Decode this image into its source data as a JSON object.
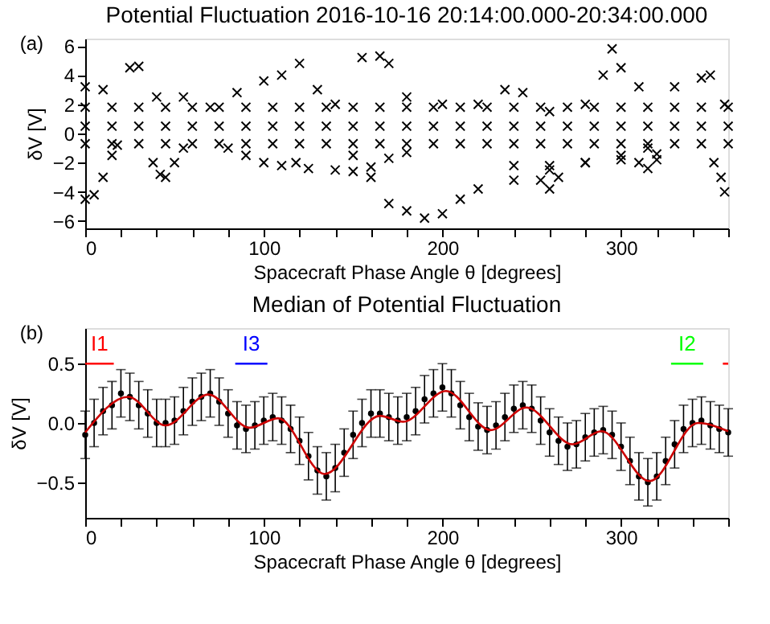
{
  "chart_data": [
    {
      "type": "scatter",
      "title": "Potential Fluctuation 2016-10-16 20:14:00.000-20:34:00.000",
      "xlabel": "Spacecraft Phase Angle θ [degrees]",
      "ylabel": "δV [V]",
      "annotations": [
        "(a)"
      ],
      "marker": "cross",
      "color": "#000000",
      "x": [
        0,
        15,
        30,
        45,
        60,
        75,
        90,
        105,
        120,
        135,
        150,
        165,
        180,
        195,
        210,
        225,
        240,
        255,
        270,
        285,
        300,
        315,
        330,
        345,
        360,
        0,
        15,
        30,
        45,
        60,
        75,
        90,
        105,
        120,
        135,
        150,
        165,
        180,
        195,
        210,
        225,
        240,
        255,
        270,
        285,
        300,
        315,
        330,
        345,
        360,
        0,
        15,
        30,
        45,
        60,
        75,
        90,
        105,
        120,
        135,
        150,
        165,
        180,
        195,
        210,
        225,
        240,
        255,
        270,
        285,
        300,
        315,
        330,
        345,
        360,
        0,
        10,
        25,
        30,
        40,
        55,
        70,
        85,
        100,
        110,
        120,
        130,
        140,
        155,
        165,
        170,
        180,
        200,
        220,
        235,
        245,
        260,
        280,
        290,
        295,
        300,
        310,
        330,
        345,
        350,
        358,
        0,
        5,
        10,
        15,
        18,
        38,
        42,
        45,
        50,
        55,
        80,
        90,
        100,
        110,
        118,
        125,
        140,
        150,
        160,
        170,
        180,
        150,
        160,
        170,
        180,
        190,
        200,
        210,
        220,
        240,
        260,
        280,
        300,
        315,
        240,
        260,
        280,
        300,
        320,
        255,
        260,
        265,
        310,
        315,
        320,
        352,
        356,
        358
      ],
      "values": [
        0.5,
        0.5,
        0.5,
        0.5,
        0.5,
        0.5,
        0.5,
        0.5,
        0.5,
        0.5,
        0.5,
        0.5,
        0.5,
        0.5,
        0.5,
        0.5,
        0.5,
        0.5,
        0.5,
        0.5,
        0.5,
        0.5,
        0.5,
        0.5,
        0.5,
        -0.7,
        -0.7,
        -0.7,
        -0.7,
        -0.7,
        -0.7,
        -0.7,
        -0.7,
        -0.7,
        -0.7,
        -0.7,
        -0.7,
        -0.7,
        -0.7,
        -0.7,
        -0.7,
        -0.7,
        -0.7,
        -0.7,
        -0.7,
        -0.7,
        -0.7,
        -0.7,
        -0.7,
        -0.7,
        1.8,
        1.8,
        1.8,
        1.8,
        1.8,
        1.8,
        1.8,
        1.8,
        1.8,
        1.8,
        1.8,
        1.8,
        1.8,
        1.8,
        1.8,
        1.8,
        1.8,
        1.8,
        1.8,
        1.8,
        1.8,
        1.8,
        1.8,
        1.8,
        1.8,
        3.2,
        3,
        4.5,
        4.6,
        2.5,
        2.5,
        1.8,
        2.8,
        3.6,
        4,
        4.8,
        3,
        2,
        5.2,
        5.3,
        4.8,
        2.5,
        2,
        2,
        3,
        2.8,
        1.5,
        2,
        4,
        5.8,
        4.5,
        3.2,
        3.2,
        3.8,
        4,
        2,
        -4.5,
        -4.2,
        -3,
        -1.5,
        -0.8,
        -2,
        -2.8,
        -3,
        -2,
        -1,
        -1,
        -1.5,
        -2,
        -2.2,
        -2,
        -2.4,
        -2.5,
        -2.6,
        -2.3,
        -1.7,
        -1.3,
        -1.5,
        -3,
        -4.8,
        -5.3,
        -5.8,
        -5.5,
        -4.5,
        -3.8,
        -3.2,
        -2.5,
        -2,
        -1.5,
        -1,
        -2.2,
        -2.2,
        -2,
        -1.8,
        -1.4,
        -3.2,
        -3.8,
        -3,
        -2,
        -2.4,
        -1.8,
        -2,
        -3,
        -4
      ],
      "xlim": [
        0,
        360
      ],
      "ylim": [
        -6.5,
        6.5
      ],
      "xticks": [
        0,
        {
          "value": 20,
          "label": null
        },
        {
          "value": 40,
          "label": null
        },
        {
          "value": 60,
          "label": null
        },
        {
          "value": 80,
          "label": null
        },
        100,
        {
          "value": 120,
          "label": null
        },
        {
          "value": 140,
          "label": null
        },
        {
          "value": 160,
          "label": null
        },
        {
          "value": 180,
          "label": null
        },
        200,
        {
          "value": 220,
          "label": null
        },
        {
          "value": 240,
          "label": null
        },
        {
          "value": 260,
          "label": null
        },
        {
          "value": 280,
          "label": null
        },
        300,
        {
          "value": 320,
          "label": null
        },
        {
          "value": 340,
          "label": null
        },
        {
          "value": 360,
          "label": null
        }
      ],
      "yticks": [
        -6,
        -4,
        -2,
        0,
        2,
        4,
        6
      ]
    },
    {
      "type": "scatter",
      "title": "Median of Potential Fluctuation",
      "xlabel": "Spacecraft Phase Angle θ [degrees]",
      "ylabel": "δV [V]",
      "annotations": [
        "(b)"
      ],
      "series": [
        {
          "type": "scatter",
          "marker": "circle",
          "color": "#000000",
          "x": [
            0,
            5,
            10,
            15,
            20,
            25,
            30,
            35,
            40,
            45,
            50,
            55,
            60,
            65,
            70,
            75,
            80,
            85,
            90,
            95,
            100,
            105,
            110,
            115,
            120,
            125,
            130,
            135,
            140,
            145,
            150,
            155,
            160,
            165,
            170,
            175,
            180,
            185,
            190,
            195,
            200,
            205,
            210,
            215,
            220,
            225,
            230,
            235,
            240,
            245,
            250,
            255,
            260,
            265,
            270,
            275,
            280,
            285,
            290,
            295,
            300,
            305,
            310,
            315,
            320,
            325,
            330,
            335,
            340,
            345,
            350,
            355,
            360
          ],
          "values": [
            -0.1,
            0.0,
            0.1,
            0.15,
            0.25,
            0.22,
            0.15,
            0.08,
            0.0,
            0.0,
            0.02,
            0.1,
            0.18,
            0.22,
            0.25,
            0.18,
            0.08,
            -0.02,
            -0.05,
            -0.02,
            0.02,
            0.05,
            0.02,
            -0.05,
            -0.15,
            -0.28,
            -0.4,
            -0.45,
            -0.38,
            -0.25,
            -0.1,
            0.0,
            0.08,
            0.08,
            0.05,
            0.02,
            0.05,
            0.1,
            0.2,
            0.25,
            0.3,
            0.25,
            0.15,
            0.05,
            -0.03,
            -0.06,
            -0.02,
            0.05,
            0.12,
            0.15,
            0.12,
            0.02,
            -0.08,
            -0.15,
            -0.2,
            -0.18,
            -0.12,
            -0.08,
            -0.06,
            -0.1,
            -0.2,
            -0.32,
            -0.45,
            -0.5,
            -0.45,
            -0.32,
            -0.18,
            -0.05,
            0.0,
            0.02,
            -0.02,
            -0.05,
            -0.08
          ],
          "errors": [
            0.2,
            0.2,
            0.2,
            0.2,
            0.2,
            0.2,
            0.2,
            0.2,
            0.2,
            0.2,
            0.2,
            0.2,
            0.2,
            0.2,
            0.2,
            0.2,
            0.2,
            0.2,
            0.2,
            0.2,
            0.2,
            0.2,
            0.2,
            0.2,
            0.2,
            0.2,
            0.2,
            0.2,
            0.2,
            0.2,
            0.2,
            0.2,
            0.2,
            0.2,
            0.2,
            0.2,
            0.2,
            0.2,
            0.2,
            0.2,
            0.2,
            0.2,
            0.2,
            0.2,
            0.2,
            0.2,
            0.2,
            0.2,
            0.2,
            0.2,
            0.2,
            0.2,
            0.2,
            0.2,
            0.2,
            0.2,
            0.2,
            0.2,
            0.2,
            0.2,
            0.2,
            0.2,
            0.2,
            0.2,
            0.2,
            0.2,
            0.2,
            0.2,
            0.2,
            0.2,
            0.2,
            0.2,
            0.2
          ]
        },
        {
          "type": "line",
          "color": "#cc0000",
          "x": [
            0,
            24,
            45,
            69,
            92,
            108,
            134,
            165,
            178,
            202,
            227,
            247,
            273,
            289,
            316,
            343,
            360
          ],
          "values": [
            -0.08,
            0.22,
            -0.02,
            0.24,
            -0.04,
            0.04,
            -0.43,
            0.06,
            0.01,
            0.27,
            -0.06,
            0.13,
            -0.18,
            -0.07,
            -0.49,
            0.0,
            -0.07
          ]
        },
        {
          "type": "line",
          "name": "I1",
          "color": "#ff0000",
          "x": [
            0,
            16
          ],
          "values": [
            0.5,
            0.5
          ]
        },
        {
          "type": "line",
          "color": "#ff0000",
          "x": [
            357,
            360
          ],
          "values": [
            0.5,
            0.5
          ]
        },
        {
          "type": "line",
          "name": "I3",
          "color": "#0000ff",
          "x": [
            84,
            102
          ],
          "values": [
            0.5,
            0.5
          ]
        },
        {
          "type": "line",
          "name": "I2",
          "color": "#00ff00",
          "x": [
            328,
            346
          ],
          "values": [
            0.5,
            0.5
          ]
        }
      ],
      "xlim": [
        0,
        360
      ],
      "ylim": [
        -0.8,
        0.8
      ],
      "xticks": [
        0,
        {
          "value": 20,
          "label": null
        },
        {
          "value": 40,
          "label": null
        },
        {
          "value": 60,
          "label": null
        },
        {
          "value": 80,
          "label": null
        },
        100,
        {
          "value": 120,
          "label": null
        },
        {
          "value": 140,
          "label": null
        },
        {
          "value": 160,
          "label": null
        },
        {
          "value": 180,
          "label": null
        },
        200,
        {
          "value": 220,
          "label": null
        },
        {
          "value": 240,
          "label": null
        },
        {
          "value": 260,
          "label": null
        },
        {
          "value": 280,
          "label": null
        },
        300,
        {
          "value": 320,
          "label": null
        },
        {
          "value": 340,
          "label": null
        },
        {
          "value": 360,
          "label": null
        }
      ],
      "yticks": [
        -0.5,
        {
          "value": 0,
          "label": "0.0"
        },
        0.5
      ]
    }
  ]
}
